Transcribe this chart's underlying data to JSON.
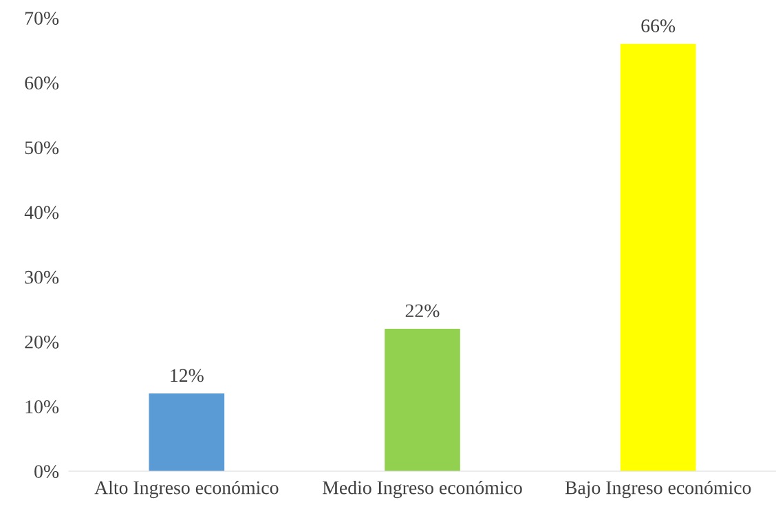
{
  "chart_data": {
    "type": "bar",
    "categories": [
      "Alto Ingreso económico",
      "Medio Ingreso económico",
      "Bajo Ingreso económico"
    ],
    "values": [
      12,
      22,
      66
    ],
    "colors": [
      "#5b9bd5",
      "#92d050",
      "#ffff00"
    ],
    "value_labels": [
      "12%",
      "22%",
      "66%"
    ],
    "ylim": [
      0,
      70
    ],
    "yticks": [
      {
        "value": 0,
        "label": "0%"
      },
      {
        "value": 10,
        "label": "10%"
      },
      {
        "value": 20,
        "label": "20%"
      },
      {
        "value": 30,
        "label": "30%"
      },
      {
        "value": 40,
        "label": "40%"
      },
      {
        "value": 50,
        "label": "50%"
      },
      {
        "value": 60,
        "label": "60%"
      },
      {
        "value": 70,
        "label": "70%"
      }
    ],
    "grid": false,
    "legend": false
  }
}
